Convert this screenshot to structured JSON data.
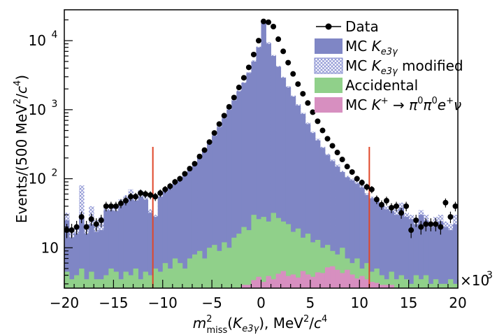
{
  "chart_data": {
    "type": "histogram",
    "title": "",
    "xlabel_parts": {
      "m": "m",
      "sup": "2",
      "sub": "miss",
      "k_open": "(K",
      "k_sub": "e3γ",
      "k_close": "), MeV",
      "unit_sup": "2",
      "unit_tail": "/c",
      "unit_tail_sup": "4"
    },
    "ylabel_parts": {
      "main": "Events/(500 MeV",
      "sup1": "2",
      "mid": "/c",
      "sup2": "4",
      "end": ")"
    },
    "x_multiplier_label": "×10",
    "x_multiplier_exp": "3",
    "x_range": [
      -20,
      20
    ],
    "y_log": true,
    "y_range": [
      2.6,
      28000
    ],
    "x_tick_labels": [
      "−20",
      "−15",
      "−10",
      "−5",
      "0",
      "5",
      "10",
      "15",
      "20"
    ],
    "x_ticks": [
      -20,
      -15,
      -10,
      -5,
      0,
      5,
      10,
      15,
      20
    ],
    "y_tick_labels": [
      {
        "value": 10,
        "base": "10",
        "exp": ""
      },
      {
        "value": 100,
        "base": "10",
        "exp": "2"
      },
      {
        "value": 1000,
        "base": "10",
        "exp": "3"
      },
      {
        "value": 10000,
        "base": "10",
        "exp": "4"
      }
    ],
    "cut_lines_x": [
      -11,
      11
    ],
    "bin_edges": [
      -20,
      -19.5,
      -19,
      -18.5,
      -18,
      -17.5,
      -17,
      -16.5,
      -16,
      -15.5,
      -15,
      -14.5,
      -14,
      -13.5,
      -13,
      -12.5,
      -12,
      -11.5,
      -11,
      -10.5,
      -10,
      -9.5,
      -9,
      -8.5,
      -8,
      -7.5,
      -7,
      -6.5,
      -6,
      -5.5,
      -5,
      -4.5,
      -4,
      -3.5,
      -3,
      -2.5,
      -2,
      -1.5,
      -1,
      -0.5,
      0,
      0.5,
      1,
      1.5,
      2,
      2.5,
      3,
      3.5,
      4,
      4.5,
      5,
      5.5,
      6,
      6.5,
      7,
      7.5,
      8,
      8.5,
      9,
      9.5,
      10,
      10.5,
      11,
      11.5,
      12,
      12.5,
      13,
      13.5,
      14,
      14.5,
      15,
      15.5,
      16,
      16.5,
      17,
      17.5,
      18,
      18.5,
      19,
      19.5,
      20
    ],
    "series": [
      {
        "name": "MC K_e3γ modified",
        "label_parts": {
          "a": "MC K",
          "sub": "e3γ",
          "b": " modified"
        },
        "style": "hatched",
        "color": "#6f78c8",
        "values": [
          32,
          18,
          20,
          80,
          22,
          40,
          25,
          28,
          40,
          42,
          40,
          50,
          58,
          70,
          60,
          68,
          55,
          36,
          30,
          60,
          70,
          80,
          90,
          105,
          120,
          140,
          170,
          210,
          260,
          330,
          440,
          580,
          780,
          1050,
          1400,
          1900,
          2500,
          3500,
          5200,
          8200,
          12500,
          9500,
          6200,
          4300,
          3000,
          2200,
          1600,
          1200,
          900,
          650,
          480,
          380,
          290,
          230,
          190,
          160,
          130,
          110,
          100,
          90,
          80,
          62,
          55,
          50,
          45,
          40,
          38,
          36,
          45,
          32,
          30,
          26,
          35,
          30,
          24,
          28,
          30,
          24,
          22,
          30
        ]
      },
      {
        "name": "MC K_e3γ",
        "label_parts": {
          "a": "MC K",
          "sub": "e3γ",
          "b": ""
        },
        "style": "fill",
        "color": "#7f86c5",
        "values": [
          25,
          14,
          16,
          28,
          16,
          22,
          17,
          18,
          35,
          35,
          34,
          40,
          45,
          50,
          48,
          55,
          50,
          32,
          28,
          55,
          65,
          75,
          85,
          100,
          115,
          135,
          165,
          200,
          250,
          320,
          420,
          560,
          750,
          1000,
          1350,
          1850,
          2450,
          3400,
          5000,
          8000,
          18500,
          9000,
          6000,
          4200,
          2900,
          2100,
          1550,
          1150,
          870,
          620,
          460,
          360,
          280,
          220,
          180,
          150,
          125,
          105,
          95,
          85,
          75,
          58,
          52,
          46,
          42,
          36,
          34,
          30,
          38,
          28,
          26,
          22,
          30,
          25,
          20,
          22,
          24,
          20,
          18,
          22
        ]
      },
      {
        "name": "Accidental",
        "label_parts": {
          "a": "Accidental",
          "sub": "",
          "b": ""
        },
        "style": "fill",
        "color": "#90d08a",
        "values": [
          4.5,
          3.5,
          4,
          5,
          3.5,
          4.5,
          3.5,
          3.5,
          4,
          5,
          4.5,
          3.5,
          4.5,
          4,
          5,
          3.5,
          4.5,
          4,
          5,
          4.5,
          6,
          5,
          7,
          6,
          5,
          7,
          8,
          9,
          7,
          10,
          11,
          9,
          12,
          10,
          14,
          16,
          20,
          18,
          30,
          26,
          28,
          24,
          32,
          27,
          24,
          22,
          17,
          19,
          14,
          16,
          12,
          13,
          10,
          11,
          9,
          8,
          10,
          7,
          6,
          7,
          5,
          6,
          4.5,
          5,
          4,
          3.5,
          4.5,
          3.5,
          4,
          3.5,
          3,
          4,
          3.5,
          4,
          3,
          3.5,
          3,
          3,
          3.5,
          3
        ]
      },
      {
        "name": "MC K+ → π0π0e+ν",
        "label_parts": {
          "a": "MC K",
          "sup1": "+",
          "arrow": " → ",
          "pi1": "π",
          "pi1sup": "0",
          "pi2": "π",
          "pi2sup": "0",
          "e": "e",
          "esup": "+",
          "nu": "ν"
        },
        "style": "fill",
        "color": "#d78fc0",
        "values": [
          0,
          0,
          0,
          0,
          0,
          0,
          0,
          0,
          0,
          0,
          0,
          0,
          0,
          0,
          0,
          0,
          0,
          0,
          0,
          0,
          0,
          0,
          0,
          0,
          0,
          0,
          0,
          0,
          0,
          0,
          0,
          0,
          0,
          0,
          0,
          0,
          2.9,
          2.9,
          3.4,
          3.8,
          3.2,
          3.9,
          3.5,
          4.2,
          4.6,
          3.9,
          4.1,
          3.7,
          4.6,
          4.1,
          3.8,
          4.4,
          4.3,
          5.2,
          5.4,
          4.8,
          4.3,
          4.8,
          4.1,
          3.6,
          3.9,
          3.5,
          3.2,
          3.1,
          2.9,
          2.9,
          2.9,
          0,
          0,
          0,
          0,
          0,
          0,
          0,
          0,
          0,
          0,
          0,
          0,
          0
        ]
      },
      {
        "name": "Data",
        "label_parts": {
          "a": "Data",
          "sub": "",
          "b": ""
        },
        "style": "points",
        "color": "#000000",
        "values": [
          18,
          18,
          20,
          28,
          20,
          26,
          22,
          25,
          40,
          40,
          40,
          44,
          48,
          55,
          55,
          62,
          60,
          58,
          55,
          62,
          70,
          78,
          90,
          100,
          118,
          140,
          165,
          210,
          260,
          340,
          460,
          620,
          820,
          1100,
          1500,
          2100,
          2900,
          4100,
          6300,
          10000,
          19000,
          18500,
          16000,
          10500,
          7000,
          4800,
          3300,
          2350,
          1700,
          1250,
          920,
          680,
          500,
          380,
          300,
          240,
          190,
          150,
          125,
          100,
          88,
          76,
          70,
          50,
          42,
          48,
          38,
          40,
          32,
          40,
          18,
          25,
          20,
          22,
          22,
          22,
          20,
          45,
          28,
          40
        ],
        "errors": [
          4.2,
          4.2,
          4.5,
          5.3,
          4.5,
          5.1,
          4.7,
          5,
          6.3,
          6.3,
          6.3,
          6.6,
          6.9,
          7.4,
          7.4,
          7.9,
          7.7,
          7.6,
          7.4,
          7.9,
          8.4,
          8.8,
          9.5,
          10,
          10.9,
          11.8,
          12.8,
          14.5,
          16.1,
          18.4,
          21.4,
          24.9,
          28.6,
          33.2,
          38.7,
          45.8,
          53.9,
          64,
          79.4,
          100,
          137.8,
          136,
          126.5,
          102.5,
          83.7,
          69.3,
          57.4,
          48.5,
          41.2,
          35.4,
          30.3,
          26.1,
          22.4,
          19.5,
          17.3,
          15.5,
          13.8,
          12.2,
          11.2,
          10,
          9.4,
          8.7,
          8.4,
          7.1,
          6.5,
          6.9,
          6.2,
          6.3,
          5.7,
          6.3,
          4.2,
          5,
          4.5,
          4.7,
          4.7,
          4.7,
          4.5,
          6.7,
          5.3,
          6.3
        ]
      }
    ],
    "legend_position": "top-right"
  }
}
